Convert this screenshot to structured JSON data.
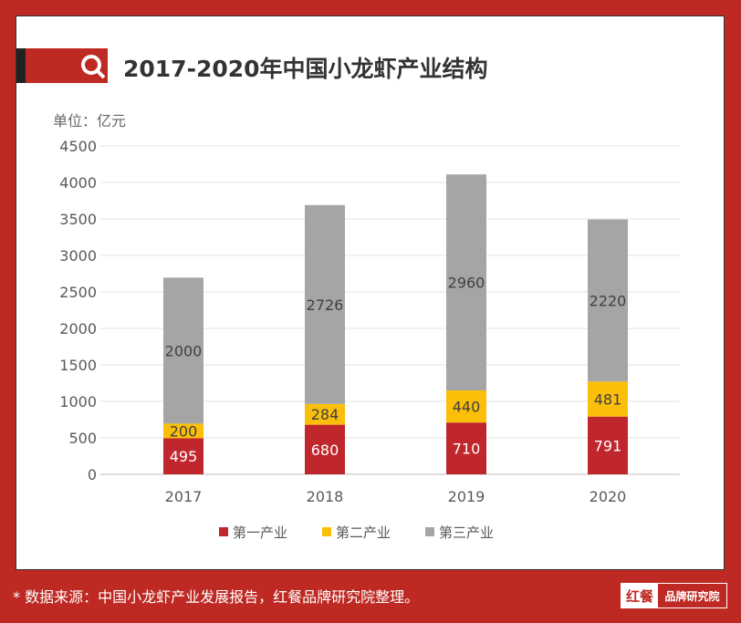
{
  "title": "2017-2020年中国小龙虾产业结构",
  "unit_label": "单位：亿元",
  "footer": "* 数据来源：中国小龙虾产业发展报告，红餐品牌研究院整理。",
  "logo": {
    "mark": "红餐",
    "text": "品牌研究院"
  },
  "icons": {
    "title": "search-icon"
  },
  "colors": {
    "background": "#be2a23",
    "primary": "#c0272d",
    "secondary": "#fbbf0a",
    "tertiary": "#a5a5a5"
  },
  "chart_data": {
    "type": "bar",
    "stacked": true,
    "categories": [
      "2017",
      "2018",
      "2019",
      "2020"
    ],
    "series": [
      {
        "name": "第一产业",
        "values": [
          495,
          680,
          710,
          791
        ],
        "color": "#c0272d"
      },
      {
        "name": "第二产业",
        "values": [
          200,
          284,
          440,
          481
        ],
        "color": "#fbbf0a"
      },
      {
        "name": "第三产业",
        "values": [
          2000,
          2726,
          2960,
          2220
        ],
        "color": "#a5a5a5"
      }
    ],
    "ylim": [
      0,
      4500
    ],
    "yticks": [
      0,
      500,
      1000,
      1500,
      2000,
      2500,
      3000,
      3500,
      4000,
      4500
    ],
    "grid": true,
    "legend": "bottom"
  }
}
